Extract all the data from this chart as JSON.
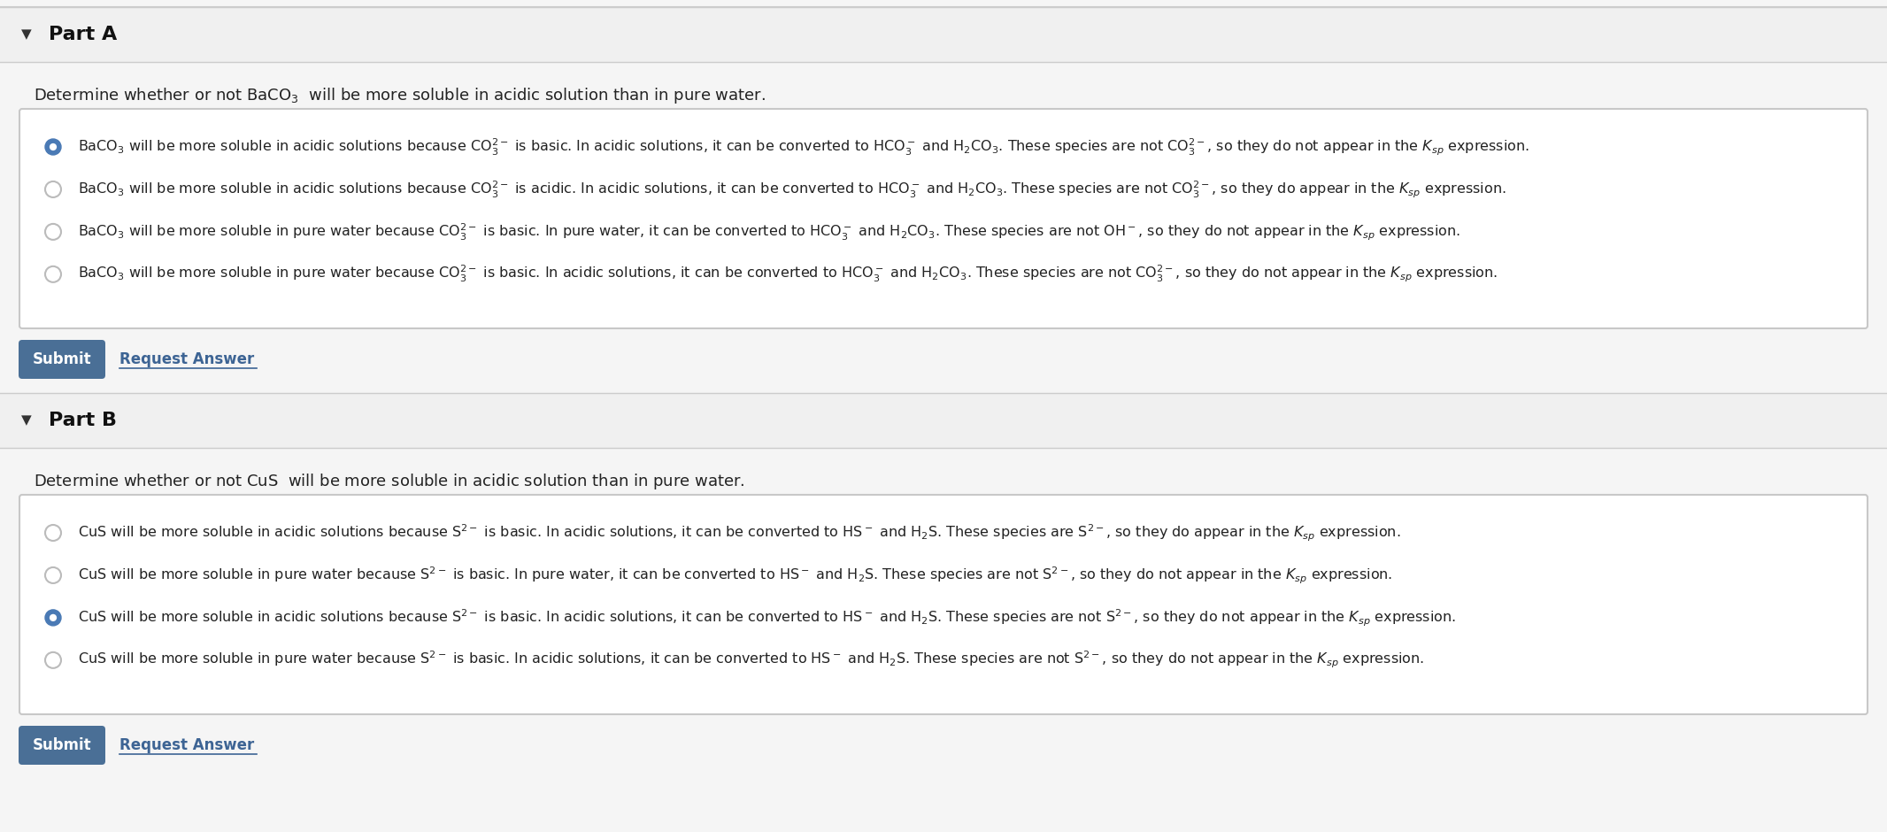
{
  "bg_color": "#f5f5f5",
  "white": "#ffffff",
  "border_color": "#c8c8c8",
  "header_bg": "#f0f0f0",
  "submit_bg": "#4a6f96",
  "submit_text": "#ffffff",
  "request_text": "#3d6494",
  "selected_circle_fill": "#4a7ab5",
  "selected_circle_edge": "#4a7ab5",
  "unselected_circle_edge": "#bbbbbb",
  "text_color": "#222222",
  "part_a_header": "Part A",
  "part_b_header": "Part B",
  "part_a_question": "Determine whether or not $\\mathrm{BaCO_3}$  will be more soluble in acidic solution than in pure water.",
  "part_b_question": "Determine whether or not $\\mathrm{CuS}$  will be more soluble in acidic solution than in pure water.",
  "triangle": "▼",
  "part_a_options": [
    "$\\mathrm{BaCO_3}$ will be more soluble in acidic solutions because $\\mathrm{CO_3^{2-}}$ is basic. In acidic solutions, it can be converted to $\\mathrm{HCO_3^-}$ and $\\mathrm{H_2CO_3}$. These species are not $\\mathrm{CO_3^{2-}}$, so they do not appear in the $K_{sp}$ expression.",
    "$\\mathrm{BaCO_3}$ will be more soluble in acidic solutions because $\\mathrm{CO_3^{2-}}$ is acidic. In acidic solutions, it can be converted to $\\mathrm{HCO_3^-}$ and $\\mathrm{H_2CO_3}$. These species are not $\\mathrm{CO_3^{2-}}$, so they do appear in the $K_{sp}$ expression.",
    "$\\mathrm{BaCO_3}$ will be more soluble in pure water because $\\mathrm{CO_3^{2-}}$ is basic. In pure water, it can be converted to $\\mathrm{HCO_3^-}$ and $\\mathrm{H_2CO_3}$. These species are not $\\mathrm{OH^-}$, so they do not appear in the $K_{sp}$ expression.",
    "$\\mathrm{BaCO_3}$ will be more soluble in pure water because $\\mathrm{CO_3^{2-}}$ is basic. In acidic solutions, it can be converted to $\\mathrm{HCO_3^-}$ and $\\mathrm{H_2CO_3}$. These species are not $\\mathrm{CO_3^{2-}}$, so they do not appear in the $K_{sp}$ expression."
  ],
  "part_a_selected": 0,
  "part_b_options": [
    "$\\mathrm{CuS}$ will be more soluble in acidic solutions because $\\mathrm{S^{2-}}$ is basic. In acidic solutions, it can be converted to $\\mathrm{HS^-}$ and $\\mathrm{H_2S}$. These species are $\\mathrm{S^{2-}}$, so they do appear in the $K_{sp}$ expression.",
    "$\\mathrm{CuS}$ will be more soluble in pure water because $\\mathrm{S^{2-}}$ is basic. In pure water, it can be converted to $\\mathrm{HS^-}$ and $\\mathrm{H_2S}$. These species are not $\\mathrm{S^{2-}}$, so they do not appear in the $K_{sp}$ expression.",
    "$\\mathrm{CuS}$ will be more soluble in acidic solutions because $\\mathrm{S^{2-}}$ is basic. In acidic solutions, it can be converted to $\\mathrm{HS^-}$ and $\\mathrm{H_2S}$. These species are not $\\mathrm{S^{2-}}$, so they do not appear in the $K_{sp}$ expression.",
    "$\\mathrm{CuS}$ will be more soluble in pure water because $\\mathrm{S^{2-}}$ is basic. In acidic solutions, it can be converted to $\\mathrm{HS^-}$ and $\\mathrm{H_2S}$. These species are not $\\mathrm{S^{2-}}$, so they do not appear in the $K_{sp}$ expression."
  ],
  "part_b_selected": 2,
  "fig_width": 21.32,
  "fig_height": 9.4,
  "dpi": 100
}
